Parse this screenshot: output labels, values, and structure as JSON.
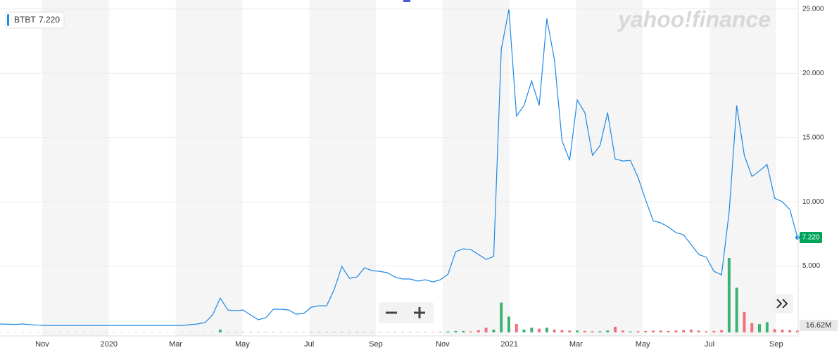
{
  "chart_data": {
    "type": "line",
    "brand": "yahoo!finance",
    "quote": {
      "symbol": "BTBT",
      "price": "7.220"
    },
    "volume_badge": "16.62M",
    "color": "#1e88e5",
    "up_color": "#3cb371",
    "down_color": "#f0717a",
    "grid": true,
    "ylim": [
      0,
      25.7
    ],
    "yticks": [
      {
        "value": 5,
        "label": "5.000"
      },
      {
        "value": 10,
        "label": "10.000"
      },
      {
        "value": 15,
        "label": "15.000"
      },
      {
        "value": 20,
        "label": "20.000"
      },
      {
        "value": 25,
        "label": "25.000"
      }
    ],
    "xtick_labels": [
      "Nov",
      "2020",
      "Mar",
      "May",
      "Jul",
      "Sep",
      "Nov",
      "2021",
      "Mar",
      "May",
      "Jul",
      "Sep"
    ],
    "values": [
      0.49,
      0.47,
      0.46,
      0.49,
      0.44,
      0.4,
      0.38,
      0.38,
      0.38,
      0.38,
      0.38,
      0.38,
      0.38,
      0.38,
      0.38,
      0.38,
      0.38,
      0.38,
      0.38,
      0.38,
      0.38,
      0.38,
      0.38,
      0.38,
      0.38,
      0.44,
      0.49,
      0.6,
      1.2,
      2.51,
      1.58,
      1.53,
      1.58,
      1.2,
      0.82,
      0.98,
      1.64,
      1.64,
      1.58,
      1.26,
      1.31,
      1.8,
      1.91,
      1.91,
      3.17,
      4.97,
      4.04,
      4.15,
      4.86,
      4.64,
      4.59,
      4.48,
      4.15,
      3.99,
      3.99,
      3.83,
      3.93,
      3.77,
      3.93,
      4.37,
      6.12,
      6.34,
      6.28,
      5.9,
      5.52,
      5.74,
      21.86,
      24.97,
      16.67,
      17.49,
      19.4,
      17.49,
      24.26,
      21.04,
      14.75,
      13.22,
      17.92,
      16.94,
      13.61,
      14.37,
      16.94,
      13.33,
      13.17,
      13.22,
      11.91,
      10.16,
      8.52,
      8.36,
      8.03,
      7.6,
      7.43,
      6.67,
      5.9,
      5.68,
      4.59,
      4.32,
      9.18,
      17.49,
      13.61,
      11.97,
      12.4,
      12.9,
      10.27,
      10.0,
      9.4,
      7.22
    ],
    "volume": [
      0.1,
      0.1,
      0.1,
      0.1,
      0.1,
      0.1,
      0.1,
      0.1,
      0.1,
      0.1,
      0.1,
      0.1,
      0.1,
      0.1,
      0.1,
      0.1,
      0.1,
      0.1,
      0.1,
      0.1,
      0.1,
      0.1,
      0.1,
      0.1,
      0.1,
      0.1,
      0.1,
      0.1,
      0.1,
      1.5,
      0.2,
      0.2,
      0.2,
      0.2,
      0.2,
      0.2,
      0.2,
      0.2,
      0.2,
      0.2,
      0.2,
      0.2,
      0.2,
      0.2,
      0.2,
      0.2,
      0.2,
      0.2,
      0.2,
      0.2,
      0.2,
      0.2,
      0.2,
      0.2,
      0.2,
      0.2,
      0.2,
      0.2,
      0.3,
      0.5,
      0.8,
      0.8,
      0.5,
      1.2,
      2.5,
      1.5,
      16,
      8.5,
      4.5,
      1.5,
      2.5,
      2,
      2.5,
      1.5,
      1.2,
      1,
      1,
      0.8,
      0.6,
      0.6,
      1,
      3,
      1,
      0.5,
      0.6,
      0.8,
      1,
      1,
      0.8,
      1,
      1.2,
      1.5,
      1,
      0.6,
      0.8,
      1.2,
      40,
      24,
      11,
      5,
      4.5,
      5.5,
      1.8,
      1.5,
      1.2,
      1
    ]
  }
}
